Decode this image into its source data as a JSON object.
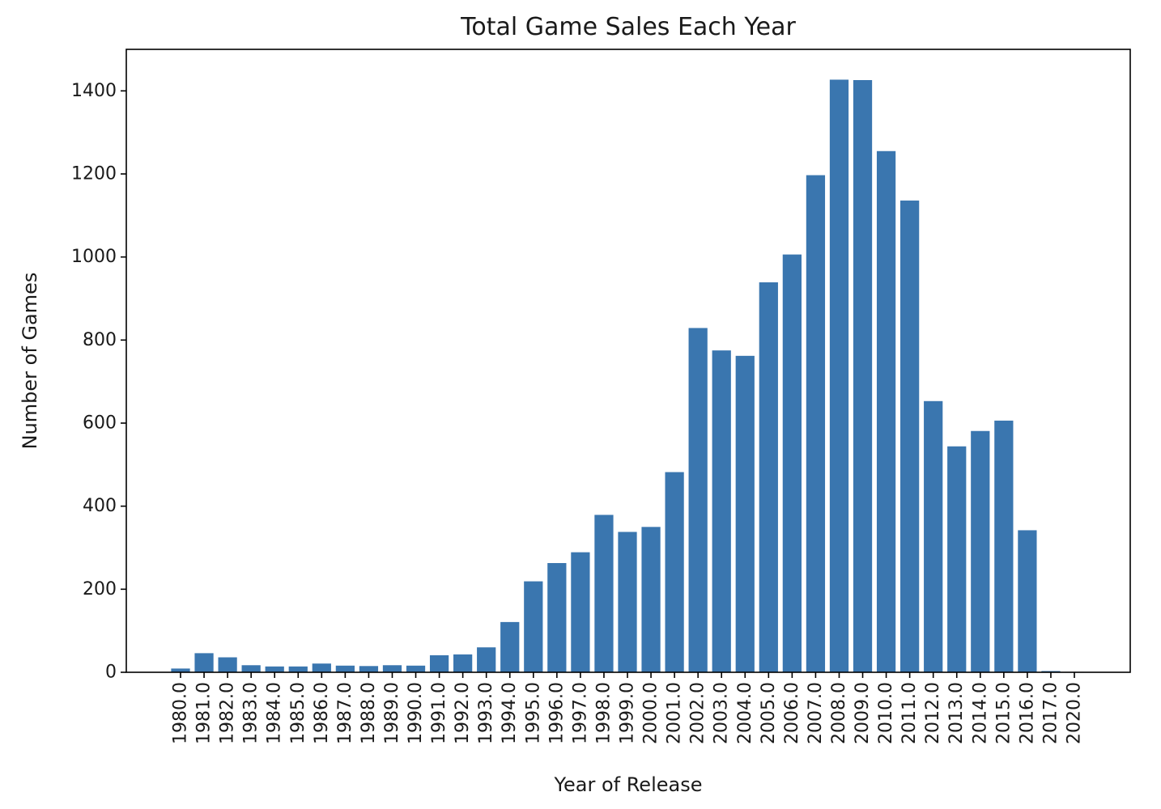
{
  "chart_data": {
    "type": "bar",
    "title": "Total Game Sales Each Year",
    "xlabel": "Year of Release",
    "ylabel": "Number of Games",
    "categories": [
      "1980.0",
      "1981.0",
      "1982.0",
      "1983.0",
      "1984.0",
      "1985.0",
      "1986.0",
      "1987.0",
      "1988.0",
      "1989.0",
      "1990.0",
      "1991.0",
      "1992.0",
      "1993.0",
      "1994.0",
      "1995.0",
      "1996.0",
      "1997.0",
      "1998.0",
      "1999.0",
      "2000.0",
      "2001.0",
      "2002.0",
      "2003.0",
      "2004.0",
      "2005.0",
      "2006.0",
      "2007.0",
      "2008.0",
      "2009.0",
      "2010.0",
      "2011.0",
      "2012.0",
      "2013.0",
      "2014.0",
      "2015.0",
      "2016.0",
      "2017.0",
      "2020.0"
    ],
    "values": [
      9,
      46,
      36,
      17,
      14,
      14,
      21,
      16,
      15,
      17,
      16,
      41,
      43,
      60,
      121,
      219,
      263,
      289,
      379,
      338,
      350,
      482,
      829,
      775,
      762,
      939,
      1006,
      1197,
      1427,
      1426,
      1255,
      1136,
      653,
      544,
      581,
      606,
      342,
      3,
      1
    ],
    "yticks": [
      "0",
      "200",
      "400",
      "600",
      "800",
      "1000",
      "1200",
      "1400"
    ],
    "ylim": [
      0,
      1500
    ],
    "grid": false,
    "bar_color": "#3a76af"
  }
}
